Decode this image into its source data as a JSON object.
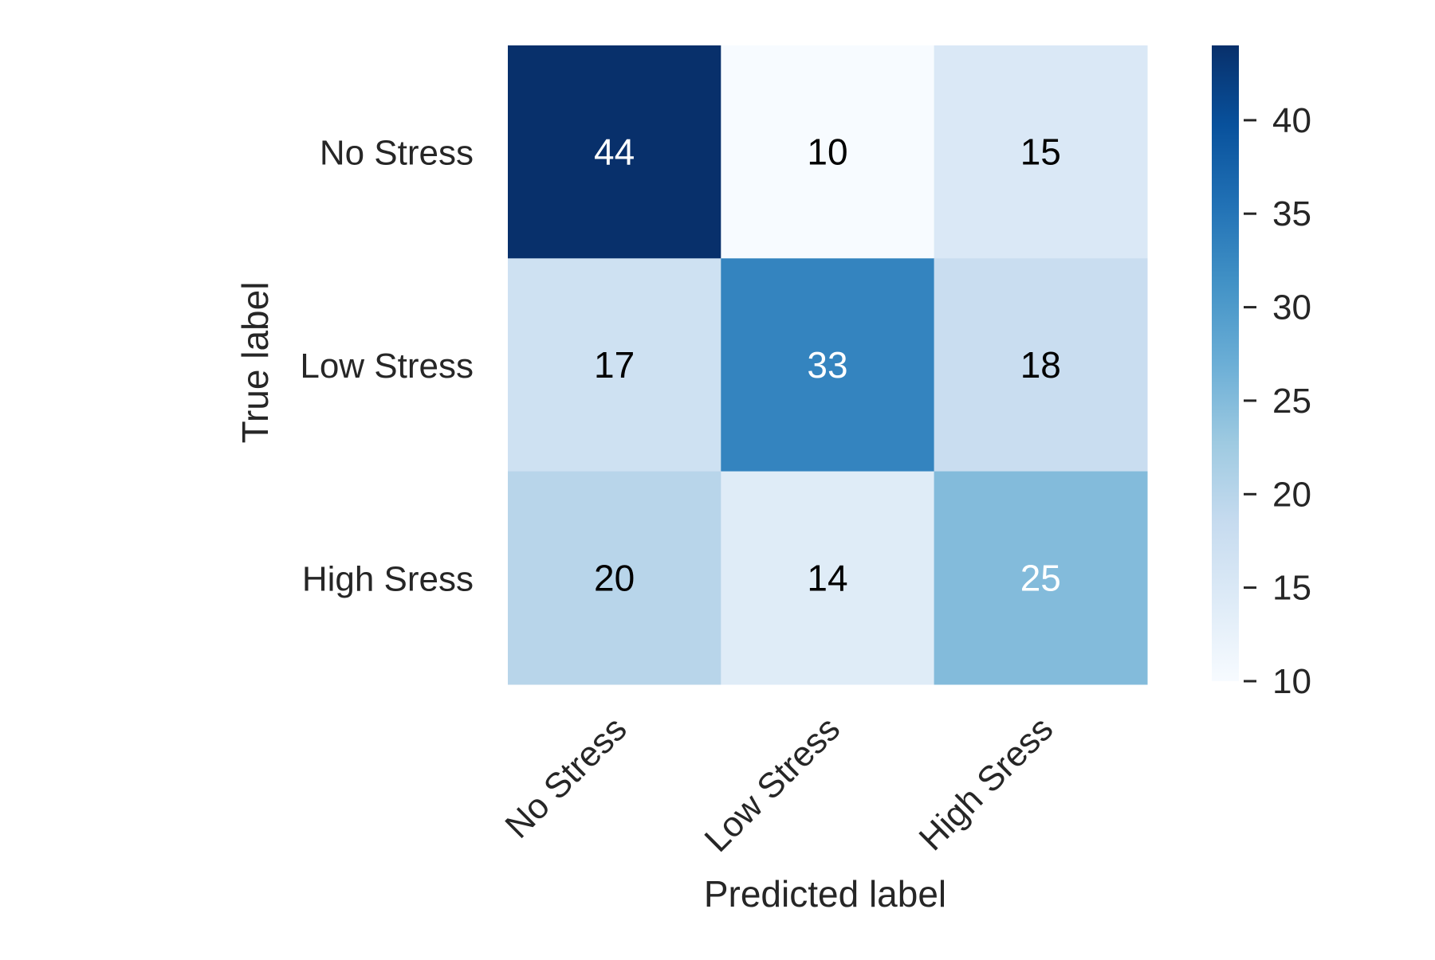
{
  "chart_data": {
    "type": "heatmap",
    "title": "",
    "xlabel": "Predicted label",
    "ylabel": "True label",
    "x_categories": [
      "No Stress",
      "Low Stress",
      "High Sress"
    ],
    "y_categories": [
      "No Stress",
      "Low Stress",
      "High Sress"
    ],
    "values": [
      [
        44,
        10,
        15
      ],
      [
        17,
        33,
        18
      ],
      [
        20,
        14,
        25
      ]
    ],
    "colormap": "Blues",
    "colorbar": {
      "min": 10,
      "max": 44,
      "ticks": [
        10,
        15,
        20,
        25,
        30,
        35,
        40
      ]
    },
    "grid": false,
    "colors": {
      "text_dark": "#000000",
      "text_light": "#ffffff",
      "label_color": "#262626"
    }
  }
}
